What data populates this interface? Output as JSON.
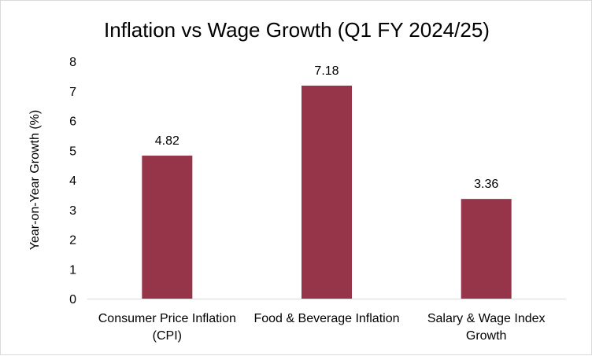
{
  "chart_data": {
    "type": "bar",
    "title": "Inflation vs Wage Growth (Q1 FY 2024/25)",
    "xlabel": "",
    "ylabel": "Year-on-Year Growth (%)",
    "categories": [
      [
        "Consumer Price Inflation",
        "(CPI)"
      ],
      [
        "Food & Beverage Inflation"
      ],
      [
        "Salary & Wage Index",
        "Growth"
      ]
    ],
    "values": [
      4.82,
      7.18,
      3.36
    ],
    "data_labels": [
      "4.82",
      "7.18",
      "3.36"
    ],
    "ylim": [
      0,
      8
    ],
    "yticks": [
      "0",
      "1",
      "2",
      "3",
      "4",
      "5",
      "6",
      "7",
      "8"
    ],
    "grid": false,
    "legend": "none",
    "bar_color": "#963449",
    "axis_color": "#d9d9d9"
  }
}
